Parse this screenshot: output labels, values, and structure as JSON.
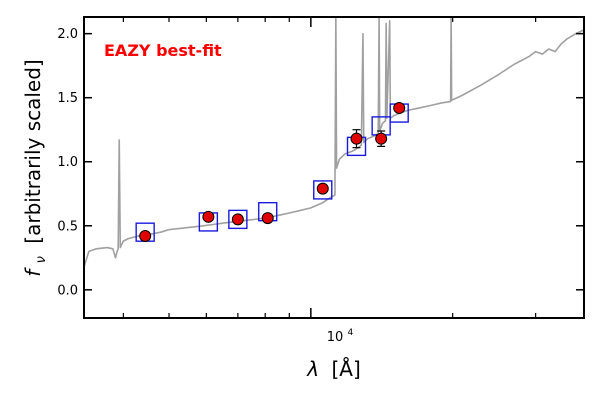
{
  "chart_data": {
    "type": "scatter",
    "title": "",
    "xlabel_prefix": "λ",
    "xlabel_unit": "[Å]",
    "ylabel_sym": "f",
    "ylabel_sub": "ν",
    "ylabel_text": "[arbitrarily scaled]",
    "xscale": "log",
    "xlim": [
      3300,
      38000
    ],
    "ylim": [
      -0.22,
      2.13
    ],
    "ytick_values": [
      0.0,
      0.5,
      1.0,
      1.5,
      2.0
    ],
    "ytick_labels": [
      "0.0",
      "0.5",
      "1.0",
      "1.5",
      "2.0"
    ],
    "xtick_label_base": "10",
    "xtick_label_exp": "4",
    "xtick_major": [
      10000
    ],
    "xtick_minor": [
      4000,
      5000,
      6000,
      7000,
      8000,
      9000,
      20000,
      30000
    ],
    "grid": false,
    "legend": "none",
    "annotation": {
      "text": "EAZY best-fit",
      "color": "#ff0000"
    },
    "colors": {
      "model": "#a0a0a0",
      "model_phot": "#1a1adf",
      "observed_fill": "#e00000",
      "observed_edge": "#000000"
    },
    "observed": [
      {
        "x": 4450,
        "y": 0.42,
        "err": 0.02
      },
      {
        "x": 6060,
        "y": 0.57,
        "err": 0.02
      },
      {
        "x": 7000,
        "y": 0.55,
        "err": 0.02
      },
      {
        "x": 8100,
        "y": 0.56,
        "err": 0.02
      },
      {
        "x": 10600,
        "y": 0.79,
        "err": 0.03
      },
      {
        "x": 12500,
        "y": 1.18,
        "err": 0.07
      },
      {
        "x": 14100,
        "y": 1.18,
        "err": 0.06
      },
      {
        "x": 15400,
        "y": 1.42,
        "err": 0.03
      }
    ],
    "model_photometry": [
      {
        "x": 4450,
        "y": 0.45
      },
      {
        "x": 6060,
        "y": 0.53
      },
      {
        "x": 7000,
        "y": 0.55
      },
      {
        "x": 8100,
        "y": 0.61
      },
      {
        "x": 10600,
        "y": 0.78
      },
      {
        "x": 12500,
        "y": 1.12
      },
      {
        "x": 14100,
        "y": 1.28
      },
      {
        "x": 15400,
        "y": 1.38
      }
    ],
    "model_sed": [
      [
        3300,
        0.18
      ],
      [
        3380,
        0.3
      ],
      [
        3500,
        0.32
      ],
      [
        3700,
        0.33
      ],
      [
        3800,
        0.32
      ],
      [
        3850,
        0.25
      ],
      [
        3880,
        0.3
      ],
      [
        3900,
        0.32
      ],
      [
        3920,
        1.17
      ],
      [
        3940,
        0.33
      ],
      [
        4000,
        0.38
      ],
      [
        4100,
        0.4
      ],
      [
        4300,
        0.42
      ],
      [
        4500,
        0.43
      ],
      [
        4800,
        0.45
      ],
      [
        5000,
        0.47
      ],
      [
        5300,
        0.48
      ],
      [
        5600,
        0.49
      ],
      [
        5900,
        0.5
      ],
      [
        6200,
        0.51
      ],
      [
        6500,
        0.52
      ],
      [
        6800,
        0.53
      ],
      [
        7200,
        0.54
      ],
      [
        7600,
        0.55
      ],
      [
        8000,
        0.56
      ],
      [
        8500,
        0.58
      ],
      [
        9000,
        0.6
      ],
      [
        9500,
        0.62
      ],
      [
        10000,
        0.64
      ],
      [
        10600,
        0.68
      ],
      [
        11000,
        0.72
      ],
      [
        11250,
        0.74
      ],
      [
        11300,
        2.13
      ],
      [
        11340,
        0.95
      ],
      [
        11500,
        1.02
      ],
      [
        11800,
        1.06
      ],
      [
        12200,
        1.08
      ],
      [
        12500,
        1.1
      ],
      [
        12800,
        1.13
      ],
      [
        12900,
        2.0
      ],
      [
        12950,
        1.15
      ],
      [
        13200,
        1.18
      ],
      [
        13600,
        1.2
      ],
      [
        13900,
        1.22
      ],
      [
        13960,
        2.13
      ],
      [
        14000,
        1.24
      ],
      [
        14200,
        1.3
      ],
      [
        14400,
        1.32
      ],
      [
        14450,
        2.08
      ],
      [
        14500,
        1.34
      ],
      [
        14700,
        2.1
      ],
      [
        14750,
        1.34
      ],
      [
        15000,
        1.36
      ],
      [
        15500,
        1.38
      ],
      [
        16000,
        1.4
      ],
      [
        17000,
        1.42
      ],
      [
        18000,
        1.44
      ],
      [
        19000,
        1.46
      ],
      [
        19800,
        1.47
      ],
      [
        19850,
        2.13
      ],
      [
        19900,
        1.48
      ],
      [
        21000,
        1.52
      ],
      [
        23000,
        1.6
      ],
      [
        25000,
        1.68
      ],
      [
        27000,
        1.76
      ],
      [
        29000,
        1.82
      ],
      [
        30000,
        1.86
      ],
      [
        31000,
        1.84
      ],
      [
        32000,
        1.88
      ],
      [
        33000,
        1.86
      ],
      [
        34000,
        1.92
      ],
      [
        35000,
        1.96
      ],
      [
        36500,
        2.0
      ],
      [
        38000,
        2.03
      ]
    ]
  }
}
